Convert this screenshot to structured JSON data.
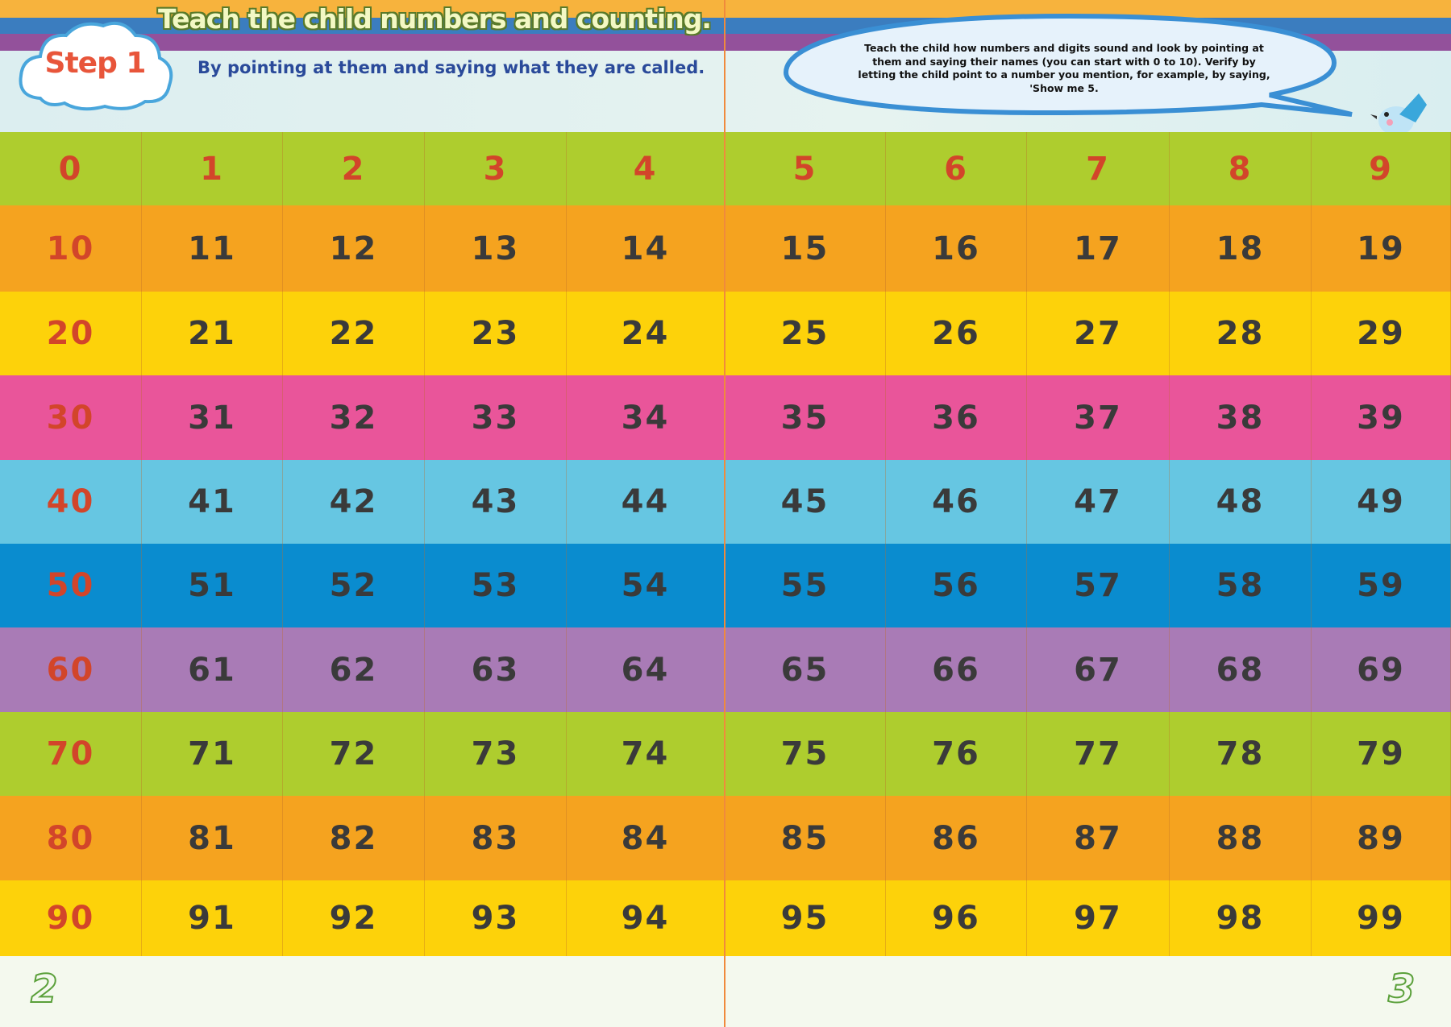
{
  "header": {
    "title": "Teach the child numbers and counting.",
    "step_label": "Step 1",
    "subtitle": "By pointing at them and saying what they are called.",
    "bubble_text": "Teach the child how numbers and digits sound and look by pointing at them and saying their names (you can start with 0 to 10). Verify by letting the child point to a number you mention, for example, by saying, 'Show me 5."
  },
  "grid": {
    "row_colors": [
      "#aecd2e",
      "#f5a31f",
      "#fdd20a",
      "#e9559a",
      "#66c6e2",
      "#0a8ccf",
      "#a97bb6",
      "#aecd2e",
      "#f5a31f",
      "#fdd20a"
    ],
    "first_column_color": "#d2452a",
    "rows": [
      [
        "0",
        "1",
        "2",
        "3",
        "4",
        "5",
        "6",
        "7",
        "8",
        "9"
      ],
      [
        "10",
        "11",
        "12",
        "13",
        "14",
        "15",
        "16",
        "17",
        "18",
        "19"
      ],
      [
        "20",
        "21",
        "22",
        "23",
        "24",
        "25",
        "26",
        "27",
        "28",
        "29"
      ],
      [
        "30",
        "31",
        "32",
        "33",
        "34",
        "35",
        "36",
        "37",
        "38",
        "39"
      ],
      [
        "40",
        "41",
        "42",
        "43",
        "44",
        "45",
        "46",
        "47",
        "48",
        "49"
      ],
      [
        "50",
        "51",
        "52",
        "53",
        "54",
        "55",
        "56",
        "57",
        "58",
        "59"
      ],
      [
        "60",
        "61",
        "62",
        "63",
        "64",
        "65",
        "66",
        "67",
        "68",
        "69"
      ],
      [
        "70",
        "71",
        "72",
        "73",
        "74",
        "75",
        "76",
        "77",
        "78",
        "79"
      ],
      [
        "80",
        "81",
        "82",
        "83",
        "84",
        "85",
        "86",
        "87",
        "88",
        "89"
      ],
      [
        "90",
        "91",
        "92",
        "93",
        "94",
        "95",
        "96",
        "97",
        "98",
        "99"
      ]
    ]
  },
  "footer": {
    "page_left": "2",
    "page_right": "3"
  }
}
